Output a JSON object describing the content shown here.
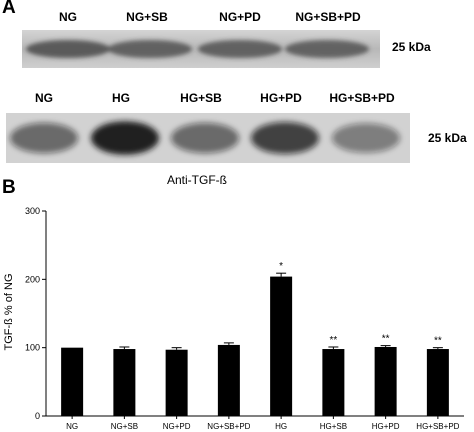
{
  "panel_a": {
    "letter": "A",
    "blot1": {
      "lanes": [
        "NG",
        "NG+SB",
        "NG+PD",
        "NG+SB+PD"
      ],
      "size_label": "25 kDa"
    },
    "blot2": {
      "lanes": [
        "NG",
        "HG",
        "HG+SB",
        "HG+PD",
        "HG+SB+PD"
      ],
      "size_label": "25 kDa",
      "band_intensity": [
        0.55,
        0.95,
        0.55,
        0.75,
        0.45
      ]
    },
    "antibody_label": "Anti-TGF-ß"
  },
  "panel_b": {
    "letter": "B"
  },
  "chart_data": {
    "type": "bar",
    "categories": [
      "NG",
      "NG+SB",
      "NG+PD",
      "NG+SB+PD",
      "HG",
      "HG+SB",
      "HG+PD",
      "HG+SB+PD"
    ],
    "values": [
      100,
      98,
      97,
      104,
      204,
      98,
      101,
      98
    ],
    "errors": [
      0,
      3,
      3,
      3,
      5,
      3,
      2,
      2
    ],
    "annotations": [
      "",
      "",
      "",
      "",
      "*",
      "**",
      "**",
      "**"
    ],
    "ylabel": "TGF-ß % of NG",
    "xlabel": "",
    "ylim": [
      0,
      300
    ],
    "yticks": [
      0,
      100,
      200,
      300
    ],
    "bar_color": "#000000",
    "grid": false
  }
}
